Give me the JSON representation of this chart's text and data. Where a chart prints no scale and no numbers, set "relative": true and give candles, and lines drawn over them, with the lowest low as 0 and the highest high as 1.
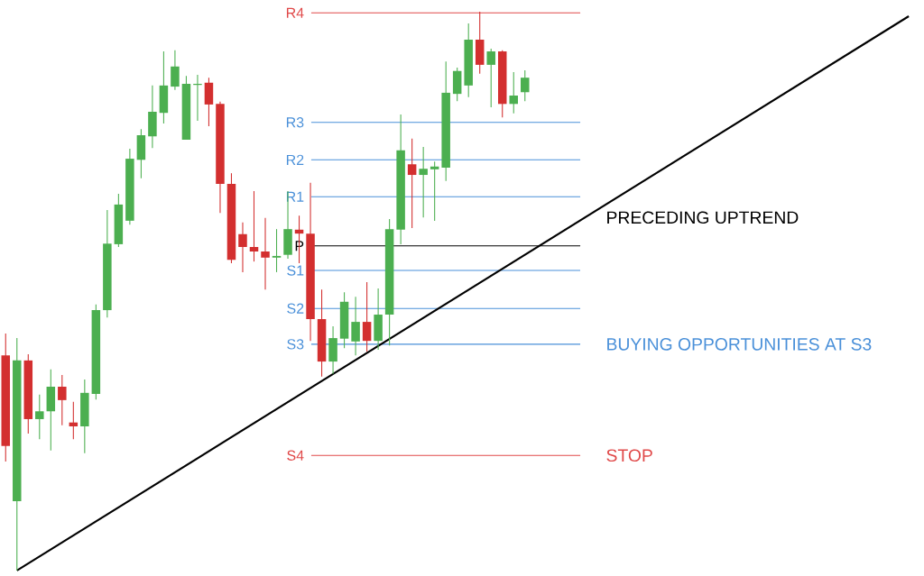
{
  "chart_data": {
    "type": "candlestick",
    "relative": true,
    "categories": [
      null,
      null,
      null,
      null,
      null,
      null,
      null,
      null,
      null,
      null,
      null,
      null,
      null,
      null,
      null,
      null,
      null,
      null,
      null,
      null,
      null,
      null,
      null,
      null,
      null,
      null,
      null,
      null,
      null,
      null,
      null,
      null,
      null,
      null,
      null,
      null,
      null,
      null,
      null,
      null,
      null,
      null,
      null,
      null,
      null,
      null,
      null,
      null,
      null,
      null,
      null,
      null,
      null,
      null,
      null,
      null,
      null,
      null,
      null,
      null,
      null,
      null,
      null,
      null,
      null,
      null,
      null,
      null,
      null,
      null,
      null,
      null,
      null,
      null,
      null,
      null,
      null,
      null,
      null,
      null,
      null
    ],
    "ohlc": [
      [
        0.385,
        0.424,
        0.195,
        0.223
      ],
      [
        0.124,
        0.416,
        0,
        0.376
      ],
      [
        0.376,
        0.387,
        0.245,
        0.271
      ],
      [
        0.271,
        0.315,
        0.235,
        0.285
      ],
      [
        0.285,
        0.36,
        0.215,
        0.329
      ],
      [
        0.329,
        0.35,
        0.26,
        0.305
      ],
      [
        0.265,
        0.302,
        0.235,
        0.258
      ],
      [
        0.258,
        0.342,
        0.21,
        0.318
      ],
      [
        0.316,
        0.476,
        0.306,
        0.466
      ],
      [
        0.466,
        0.645,
        0.453,
        0.585
      ],
      [
        0.584,
        0.674,
        0.579,
        0.655
      ],
      [
        0.626,
        0.755,
        0.619,
        0.737
      ],
      [
        0.735,
        0.79,
        0.702,
        0.779
      ],
      [
        0.777,
        0.868,
        0.756,
        0.821
      ],
      [
        0.819,
        0.929,
        0.8,
        0.868
      ],
      [
        0.866,
        0.931,
        0.86,
        0.902
      ],
      [
        0.771,
        0.885,
        0.771,
        0.871
      ],
      [
        0.869,
        0.887,
        0.805,
        0.871
      ],
      [
        0.873,
        0.882,
        0.795,
        0.834
      ],
      [
        0.835,
        0.839,
        0.64,
        0.692
      ],
      [
        0.692,
        0.711,
        0.55,
        0.556
      ],
      [
        0.602,
        0.623,
        0.534,
        0.579
      ],
      [
        0.579,
        0.679,
        0.553,
        0.571
      ],
      [
        0.571,
        0.631,
        0.503,
        0.56
      ],
      [
        0.56,
        0.611,
        0.534,
        0.563
      ],
      [
        0.565,
        0.679,
        0.558,
        0.611
      ],
      [
        0.61,
        0.635,
        0.55,
        0.603
      ],
      [
        0.603,
        0.694,
        0.411,
        0.45
      ],
      [
        0.45,
        0.503,
        0.347,
        0.374
      ],
      [
        0.374,
        0.437,
        0.352,
        0.416
      ],
      [
        0.415,
        0.498,
        0.398,
        0.481
      ],
      [
        0.41,
        0.49,
        0.385,
        0.445
      ],
      [
        0.445,
        0.516,
        0.392,
        0.411
      ],
      [
        0.411,
        0.505,
        0.395,
        0.458
      ],
      [
        0.458,
        0.629,
        0.403,
        0.611
      ],
      [
        0.61,
        0.816,
        0.584,
        0.752
      ],
      [
        0.727,
        0.773,
        0.613,
        0.708
      ],
      [
        0.708,
        0.758,
        0.632,
        0.719
      ],
      [
        0.718,
        0.732,
        0.626,
        0.723
      ],
      [
        0.721,
        0.911,
        0.697,
        0.855
      ],
      [
        0.853,
        0.9,
        0.84,
        0.894
      ],
      [
        0.868,
        0.979,
        0.847,
        0.95
      ],
      [
        0.95,
        1.0,
        0.889,
        0.905
      ],
      [
        0.905,
        0.934,
        0.829,
        0.929
      ],
      [
        0.929,
        0.931,
        0.811,
        0.835
      ],
      [
        0.835,
        0.892,
        0.818,
        0.85
      ],
      [
        0.856,
        0.895,
        0.84,
        0.882
      ],
      null,
      null,
      null,
      null,
      null,
      null,
      null,
      null,
      null,
      null,
      null,
      null,
      null,
      null,
      null,
      null,
      null,
      null,
      null,
      null,
      null,
      null,
      null,
      null,
      null,
      null,
      null,
      null,
      null,
      null,
      null,
      null,
      null,
      null
    ],
    "colors": [
      "#d32f2f",
      "#4caf50",
      "#d32f2f",
      "#4caf50",
      "#4caf50",
      "#d32f2f",
      "#d32f2f",
      "#4caf50",
      "#4caf50",
      "#4caf50",
      "#4caf50",
      "#4caf50",
      "#4caf50",
      "#4caf50",
      "#4caf50",
      "#4caf50",
      "#4caf50",
      "#4caf50",
      "#d32f2f",
      "#d32f2f",
      "#d32f2f",
      "#d32f2f",
      "#d32f2f",
      "#d32f2f",
      "#4caf50",
      "#4caf50",
      "#d32f2f",
      "#d32f2f",
      "#d32f2f",
      "#4caf50",
      "#4caf50",
      "#4caf50",
      "#d32f2f",
      "#4caf50",
      "#4caf50",
      "#4caf50",
      "#d32f2f",
      "#4caf50",
      "#4caf50",
      "#4caf50",
      "#4caf50",
      "#4caf50",
      "#d32f2f",
      "#4caf50",
      "#d32f2f",
      "#4caf50",
      "#4caf50",
      null,
      null,
      null,
      null,
      null,
      null,
      null,
      null,
      null,
      null,
      null,
      null,
      null,
      null,
      null,
      null,
      null,
      null,
      null,
      null,
      null,
      null,
      null,
      null,
      null,
      null,
      null,
      null,
      null,
      null,
      null,
      null,
      null,
      null
    ],
    "series": [
      {
        "type": "line",
        "color": "#000000",
        "values": [
          null,
          0,
          null,
          null,
          null,
          null,
          null,
          null,
          null,
          null,
          null,
          null,
          null,
          null,
          null,
          null,
          null,
          null,
          null,
          null,
          null,
          null,
          null,
          null,
          null,
          null,
          null,
          null,
          null,
          null,
          null,
          null,
          null,
          null,
          null,
          null,
          null,
          null,
          null,
          null,
          null,
          null,
          null,
          null,
          null,
          null,
          null,
          null,
          null,
          null,
          null,
          null,
          null,
          null,
          null,
          null,
          null,
          null,
          null,
          null,
          null,
          null,
          null,
          null,
          null,
          null,
          null,
          null,
          null,
          null,
          null,
          null,
          null,
          null,
          null,
          null,
          null,
          null,
          null,
          null,
          0.992
        ]
      }
    ],
    "ref_lines": [
      {
        "axis": "y",
        "value": 0.998,
        "label": "R4",
        "color": "#e04848"
      },
      {
        "axis": "y",
        "value": 0.802,
        "label": "R3",
        "color": "#4a90d9"
      },
      {
        "axis": "y",
        "value": 0.735,
        "label": "R2",
        "color": "#4a90d9"
      },
      {
        "axis": "y",
        "value": 0.669,
        "label": "R1",
        "color": "#4a90d9"
      },
      {
        "axis": "y",
        "value": 0.581,
        "label": "P",
        "color": "#000000"
      },
      {
        "axis": "y",
        "value": 0.537,
        "label": "S1",
        "color": "#4a90d9"
      },
      {
        "axis": "y",
        "value": 0.469,
        "label": "S2",
        "color": "#4a90d9"
      },
      {
        "axis": "y",
        "value": 0.405,
        "label": "S3",
        "color": "#4a90d9"
      },
      {
        "axis": "y",
        "value": 0.206,
        "label": "S4",
        "color": "#e04848"
      }
    ],
    "annotations": [
      "PRECEDING UPTREND",
      "BUYING OPPORTUNITIES AT S3",
      "STOP"
    ]
  }
}
